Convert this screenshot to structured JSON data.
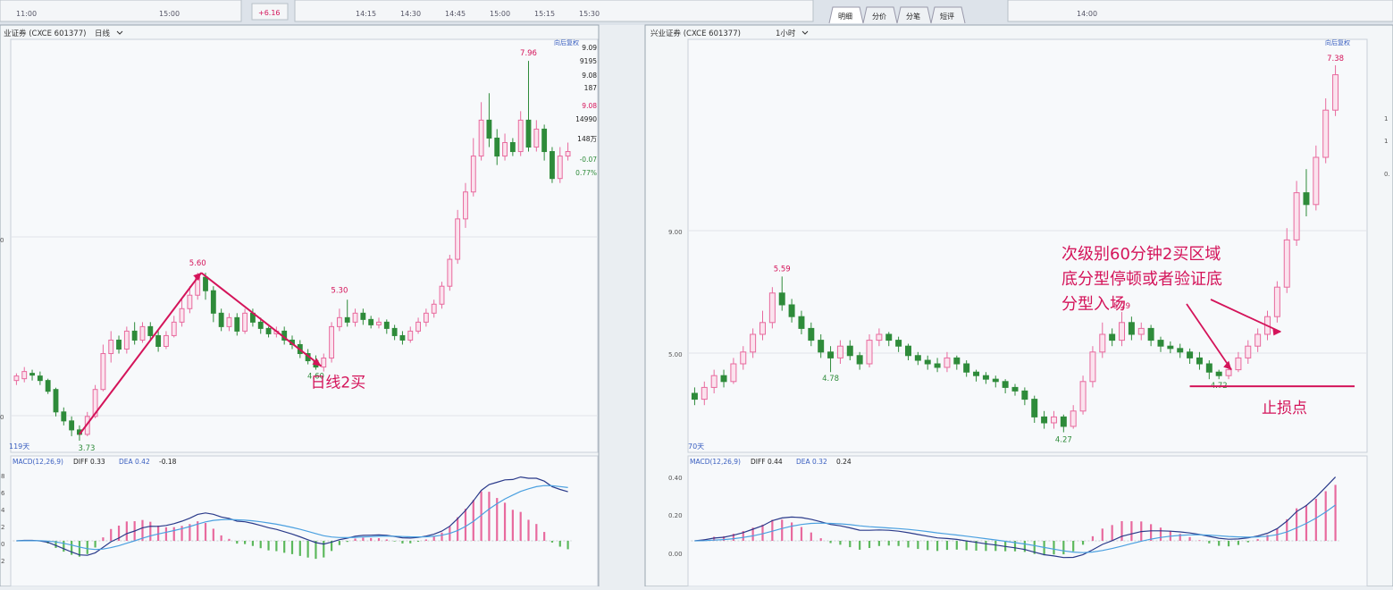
{
  "top_strip": {
    "left_times": [
      "11:00",
      "15:00"
    ],
    "left_change": "+6.16",
    "mid_times": [
      "14:15",
      "14:30",
      "14:45",
      "15:00",
      "15:15",
      "15:30"
    ],
    "tabs": [
      "明细",
      "分价",
      "分笔",
      "短评"
    ],
    "right_time": "14:00"
  },
  "left_panel": {
    "title": "业证券 (CXCE 601377)",
    "period": "日线",
    "button": "向后复权",
    "quote_values": [
      "9.09",
      "9195",
      "9.08",
      "187",
      "9.08",
      "14990",
      "148万",
      "-0.07",
      "0.77%"
    ],
    "edge_labels": [
      "0",
      "0"
    ],
    "count_label": "119天",
    "macd": {
      "name": "MACD(12,26,9)",
      "dif": "DIFF 0.33",
      "dea": "DEA 0.42",
      "macd": "-0.18"
    },
    "macd_edge_labels": [
      "8",
      "6",
      "4",
      "2",
      "0",
      "2"
    ],
    "price_labels": {
      "high": "7.96",
      "peak": "5.60",
      "mid": "5.30",
      "low": "3.73",
      "bottom": "4.60"
    },
    "annotation": "日线2买",
    "chart_data": {
      "type": "candlestick",
      "title": "业证券 (CXCE 601377) 日线",
      "xlabel": "",
      "ylabel": "",
      "ylim": [
        3.6,
        8.2
      ],
      "candles": [
        [
          4.4,
          4.45,
          4.35,
          4.48
        ],
        [
          4.42,
          4.5,
          4.38,
          4.55
        ],
        [
          4.48,
          4.46,
          4.4,
          4.52
        ],
        [
          4.45,
          4.4,
          4.35,
          4.5
        ],
        [
          4.4,
          4.28,
          4.25,
          4.42
        ],
        [
          4.3,
          4.05,
          4.0,
          4.32
        ],
        [
          4.05,
          3.95,
          3.9,
          4.1
        ],
        [
          3.95,
          3.85,
          3.78,
          4.0
        ],
        [
          3.85,
          3.8,
          3.73,
          3.9
        ],
        [
          3.8,
          4.0,
          3.78,
          4.05
        ],
        [
          4.0,
          4.3,
          3.98,
          4.35
        ],
        [
          4.3,
          4.7,
          4.28,
          4.8
        ],
        [
          4.7,
          4.85,
          4.6,
          4.95
        ],
        [
          4.85,
          4.75,
          4.7,
          4.9
        ],
        [
          4.75,
          4.95,
          4.7,
          5.0
        ],
        [
          4.95,
          4.85,
          4.8,
          5.05
        ],
        [
          4.85,
          5.0,
          4.82,
          5.05
        ],
        [
          5.0,
          4.9,
          4.85,
          5.05
        ],
        [
          4.9,
          4.78,
          4.72,
          4.95
        ],
        [
          4.78,
          4.9,
          4.75,
          4.95
        ],
        [
          4.9,
          5.05,
          4.88,
          5.12
        ],
        [
          5.05,
          5.2,
          5.0,
          5.3
        ],
        [
          5.2,
          5.35,
          5.15,
          5.45
        ],
        [
          5.35,
          5.55,
          5.3,
          5.6
        ],
        [
          5.55,
          5.4,
          5.3,
          5.6
        ],
        [
          5.4,
          5.15,
          5.05,
          5.45
        ],
        [
          5.15,
          5.0,
          4.95,
          5.2
        ],
        [
          5.0,
          5.1,
          4.95,
          5.15
        ],
        [
          5.1,
          4.95,
          4.9,
          5.15
        ],
        [
          4.95,
          5.15,
          4.92,
          5.2
        ],
        [
          5.15,
          5.05,
          5.0,
          5.2
        ],
        [
          5.05,
          4.98,
          4.92,
          5.1
        ],
        [
          4.98,
          4.92,
          4.88,
          5.0
        ],
        [
          4.92,
          4.95,
          4.88,
          5.0
        ],
        [
          4.95,
          4.85,
          4.8,
          5.0
        ],
        [
          4.85,
          4.8,
          4.75,
          4.9
        ],
        [
          4.8,
          4.7,
          4.65,
          4.85
        ],
        [
          4.7,
          4.62,
          4.58,
          4.75
        ],
        [
          4.62,
          4.55,
          4.52,
          4.68
        ],
        [
          4.55,
          4.65,
          4.5,
          4.7
        ],
        [
          4.65,
          5.0,
          4.6,
          5.05
        ],
        [
          5.0,
          5.1,
          4.95,
          5.2
        ],
        [
          5.1,
          5.05,
          5.0,
          5.3
        ],
        [
          5.05,
          5.15,
          5.0,
          5.2
        ],
        [
          5.15,
          5.08,
          5.02,
          5.2
        ],
        [
          5.08,
          5.02,
          4.98,
          5.12
        ],
        [
          5.02,
          5.05,
          4.98,
          5.1
        ],
        [
          5.05,
          4.98,
          4.92,
          5.08
        ],
        [
          4.98,
          4.9,
          4.85,
          5.02
        ],
        [
          4.9,
          4.85,
          4.8,
          4.95
        ],
        [
          4.85,
          4.95,
          4.82,
          5.0
        ],
        [
          4.95,
          5.05,
          4.92,
          5.1
        ],
        [
          5.05,
          5.15,
          5.0,
          5.2
        ],
        [
          5.15,
          5.25,
          5.1,
          5.3
        ],
        [
          5.25,
          5.45,
          5.2,
          5.5
        ],
        [
          5.45,
          5.75,
          5.4,
          5.8
        ],
        [
          5.75,
          6.2,
          5.7,
          6.3
        ],
        [
          6.2,
          6.5,
          6.1,
          6.6
        ],
        [
          6.5,
          6.9,
          6.45,
          7.1
        ],
        [
          6.9,
          7.3,
          6.85,
          7.5
        ],
        [
          7.3,
          7.1,
          7.0,
          7.6
        ],
        [
          7.1,
          6.9,
          6.8,
          7.2
        ],
        [
          6.9,
          7.05,
          6.85,
          7.15
        ],
        [
          7.05,
          6.95,
          6.9,
          7.1
        ],
        [
          6.95,
          7.3,
          6.9,
          7.4
        ],
        [
          7.3,
          7.0,
          6.95,
          7.96
        ],
        [
          7.0,
          7.2,
          6.95,
          7.3
        ],
        [
          7.2,
          6.95,
          6.85,
          7.25
        ],
        [
          6.95,
          6.65,
          6.6,
          7.0
        ],
        [
          6.65,
          6.9,
          6.6,
          7.0
        ],
        [
          6.9,
          6.95,
          6.85,
          7.05
        ]
      ]
    }
  },
  "right_panel": {
    "title": "兴业证券 (CXCE 601377)",
    "period": "1小时",
    "button": "向后复权",
    "count_label": "70天",
    "axis_labels": [
      "9.00",
      "5.00"
    ],
    "right_edge_labels": [
      "1",
      "1",
      "0."
    ],
    "macd": {
      "name": "MACD(12,26,9)",
      "dif": "DIFF 0.44",
      "dea": "DEA 0.32",
      "macd": "0.24"
    },
    "macd_axis": [
      "0.40",
      "0.20",
      "0.00"
    ],
    "price_labels": {
      "high": "7.38",
      "peak": "5.59",
      "mid": "5.29",
      "low1": "4.78",
      "low2": "4.27",
      "low3": "4.72"
    },
    "annotation_lines": [
      "次级别60分钟2买区域",
      "底分型停顿或者验证底",
      "分型入场"
    ],
    "stop_label": "止损点",
    "chart_data": {
      "type": "candlestick",
      "title": "兴业证券 (CXCE 601377) 1小时",
      "xlabel": "",
      "ylabel": "",
      "ylim": [
        4.1,
        7.6
      ],
      "candles": [
        [
          4.6,
          4.55,
          4.5,
          4.65
        ],
        [
          4.55,
          4.65,
          4.5,
          4.7
        ],
        [
          4.65,
          4.75,
          4.6,
          4.8
        ],
        [
          4.75,
          4.7,
          4.65,
          4.8
        ],
        [
          4.7,
          4.85,
          4.68,
          4.9
        ],
        [
          4.85,
          4.95,
          4.8,
          5.0
        ],
        [
          4.95,
          5.1,
          4.9,
          5.15
        ],
        [
          5.1,
          5.2,
          5.05,
          5.3
        ],
        [
          5.2,
          5.45,
          5.15,
          5.5
        ],
        [
          5.45,
          5.35,
          5.3,
          5.59
        ],
        [
          5.35,
          5.25,
          5.2,
          5.4
        ],
        [
          5.25,
          5.15,
          5.1,
          5.3
        ],
        [
          5.15,
          5.05,
          5.0,
          5.2
        ],
        [
          5.05,
          4.95,
          4.9,
          5.1
        ],
        [
          4.95,
          4.9,
          4.78,
          5.0
        ],
        [
          4.9,
          5.0,
          4.85,
          5.05
        ],
        [
          5.0,
          4.92,
          4.88,
          5.05
        ],
        [
          4.92,
          4.85,
          4.8,
          4.95
        ],
        [
          4.85,
          5.05,
          4.82,
          5.1
        ],
        [
          5.05,
          5.1,
          5.0,
          5.15
        ],
        [
          5.1,
          5.05,
          5.0,
          5.12
        ],
        [
          5.05,
          5.0,
          4.95,
          5.08
        ],
        [
          5.0,
          4.92,
          4.88,
          5.02
        ],
        [
          4.92,
          4.88,
          4.84,
          4.95
        ],
        [
          4.88,
          4.85,
          4.8,
          4.92
        ],
        [
          4.85,
          4.82,
          4.78,
          4.9
        ],
        [
          4.82,
          4.9,
          4.78,
          4.95
        ],
        [
          4.9,
          4.85,
          4.8,
          4.92
        ],
        [
          4.85,
          4.78,
          4.74,
          4.88
        ],
        [
          4.78,
          4.75,
          4.7,
          4.8
        ],
        [
          4.75,
          4.72,
          4.68,
          4.78
        ],
        [
          4.72,
          4.7,
          4.65,
          4.75
        ],
        [
          4.7,
          4.65,
          4.6,
          4.72
        ],
        [
          4.65,
          4.62,
          4.58,
          4.68
        ],
        [
          4.62,
          4.55,
          4.5,
          4.65
        ],
        [
          4.55,
          4.4,
          4.35,
          4.58
        ],
        [
          4.4,
          4.35,
          4.3,
          4.45
        ],
        [
          4.35,
          4.4,
          4.3,
          4.45
        ],
        [
          4.4,
          4.32,
          4.27,
          4.42
        ],
        [
          4.32,
          4.45,
          4.3,
          4.5
        ],
        [
          4.45,
          4.7,
          4.42,
          4.75
        ],
        [
          4.7,
          4.95,
          4.65,
          5.0
        ],
        [
          4.95,
          5.1,
          4.9,
          5.2
        ],
        [
          5.1,
          5.05,
          5.0,
          5.15
        ],
        [
          5.05,
          5.2,
          5.0,
          5.29
        ],
        [
          5.2,
          5.1,
          5.05,
          5.25
        ],
        [
          5.1,
          5.15,
          5.05,
          5.2
        ],
        [
          5.15,
          5.05,
          5.0,
          5.18
        ],
        [
          5.05,
          5.0,
          4.95,
          5.08
        ],
        [
          5.0,
          4.98,
          4.94,
          5.04
        ],
        [
          4.98,
          4.95,
          4.9,
          5.02
        ],
        [
          4.95,
          4.9,
          4.85,
          4.98
        ],
        [
          4.9,
          4.85,
          4.8,
          4.95
        ],
        [
          4.85,
          4.78,
          4.72,
          4.88
        ],
        [
          4.78,
          4.75,
          4.72,
          4.8
        ],
        [
          4.75,
          4.8,
          4.72,
          4.85
        ],
        [
          4.8,
          4.9,
          4.78,
          4.95
        ],
        [
          4.9,
          5.0,
          4.85,
          5.05
        ],
        [
          5.0,
          5.1,
          4.95,
          5.15
        ],
        [
          5.1,
          5.25,
          5.05,
          5.3
        ],
        [
          5.25,
          5.5,
          5.2,
          5.55
        ],
        [
          5.5,
          5.9,
          5.45,
          6.0
        ],
        [
          5.9,
          6.3,
          5.85,
          6.4
        ],
        [
          6.3,
          6.2,
          6.1,
          6.5
        ],
        [
          6.2,
          6.6,
          6.15,
          6.7
        ],
        [
          6.6,
          7.0,
          6.55,
          7.1
        ],
        [
          7.0,
          7.3,
          6.95,
          7.38
        ]
      ]
    }
  }
}
